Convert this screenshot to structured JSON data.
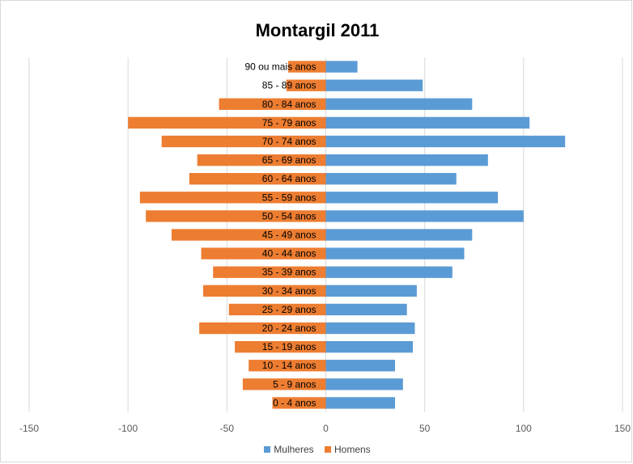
{
  "chart_data": {
    "type": "bar",
    "orientation": "horizontal",
    "title": "Montargil 2011",
    "categories": [
      "0 - 4 anos",
      "5 - 9 anos",
      "10 - 14 anos",
      "15 - 19 anos",
      "20 - 24 anos",
      "25 - 29 anos",
      "30 - 34 anos",
      "35 - 39 anos",
      "40 - 44 anos",
      "45 - 49 anos",
      "50 - 54 anos",
      "55 - 59 anos",
      "60 - 64 anos",
      "65 - 69 anos",
      "70 - 74 anos",
      "75 - 79 anos",
      "80 - 84 anos",
      "85 - 89 anos",
      "90 ou mais anos"
    ],
    "series": [
      {
        "name": "Mulheres",
        "color": "#5b9bd5",
        "values": [
          35,
          39,
          35,
          44,
          45,
          41,
          46,
          64,
          70,
          74,
          100,
          87,
          66,
          82,
          121,
          103,
          74,
          49,
          16
        ]
      },
      {
        "name": "Homens",
        "color": "#ed7d31",
        "values": [
          -27,
          -42,
          -39,
          -46,
          -64,
          -49,
          -62,
          -57,
          -63,
          -78,
          -91,
          -94,
          -69,
          -65,
          -83,
          -100,
          -54,
          -20,
          -19
        ]
      }
    ],
    "xlim": [
      -150,
      150
    ],
    "xticks": [
      -150,
      -100,
      -50,
      0,
      50,
      100,
      150
    ],
    "xtick_labels": [
      "-150",
      "-100",
      "-50",
      "0",
      "50",
      "100",
      "150"
    ],
    "grid": "vertical",
    "legend_position": "bottom"
  }
}
